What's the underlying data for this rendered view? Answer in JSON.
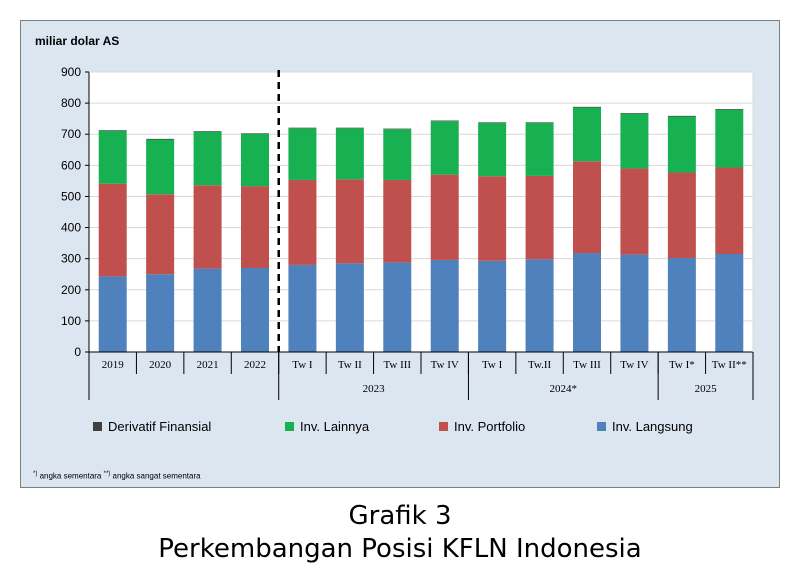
{
  "colors": {
    "derivatif": "#404040",
    "lainnya": "#17b152",
    "portfolio": "#c0504d",
    "langsung": "#4f81bd"
  },
  "chart_data": {
    "type": "bar",
    "stacked": true,
    "ylabel": "miliar dolar AS",
    "ylim": [
      0,
      900
    ],
    "yticks": [
      "0",
      "100",
      "200",
      "300",
      "400",
      "500",
      "600",
      "700",
      "800",
      "900"
    ],
    "categories": [
      "2019",
      "2020",
      "2021",
      "2022",
      "Tw I",
      "Tw II",
      "Tw III",
      "Tw IV",
      "Tw I",
      "Tw.II",
      "Tw III",
      "Tw IV",
      "Tw I*",
      "Tw II**"
    ],
    "groups": [
      {
        "label": "2023",
        "start": 4,
        "end": 7
      },
      {
        "label": "2024*",
        "start": 8,
        "end": 11
      },
      {
        "label": "2025",
        "start": 12,
        "end": 13
      }
    ],
    "series": [
      {
        "name": "Derivatif Finansial",
        "color_key": "derivatif",
        "values": [
          2,
          2,
          2,
          2,
          2,
          2,
          2,
          2,
          2,
          2,
          2,
          2,
          2,
          2
        ]
      },
      {
        "name": "Inv. Lainnya",
        "color_key": "lainnya",
        "values": [
          170,
          176,
          172,
          168,
          166,
          164,
          163,
          172,
          171,
          170,
          173,
          176,
          180,
          186
        ]
      },
      {
        "name": "Inv. Portfolio",
        "color_key": "portfolio",
        "values": [
          298,
          257,
          268,
          263,
          273,
          270,
          265,
          274,
          272,
          268,
          295,
          277,
          275,
          278
        ]
      },
      {
        "name": "Inv. Langsung",
        "color_key": "langsung",
        "values": [
          243,
          250,
          268,
          270,
          280,
          285,
          288,
          296,
          293,
          298,
          318,
          313,
          302,
          315
        ]
      }
    ],
    "divider_after_index": 3,
    "grid": "horizontal",
    "legend_position": "bottom"
  },
  "footnote": {
    "mark1": "*)",
    "text1": " angka sementara ",
    "mark2": "**)",
    "text2": " angka sangat sementara"
  },
  "caption": {
    "number": "Grafik 3",
    "title": "Perkembangan Posisi KFLN Indonesia"
  }
}
